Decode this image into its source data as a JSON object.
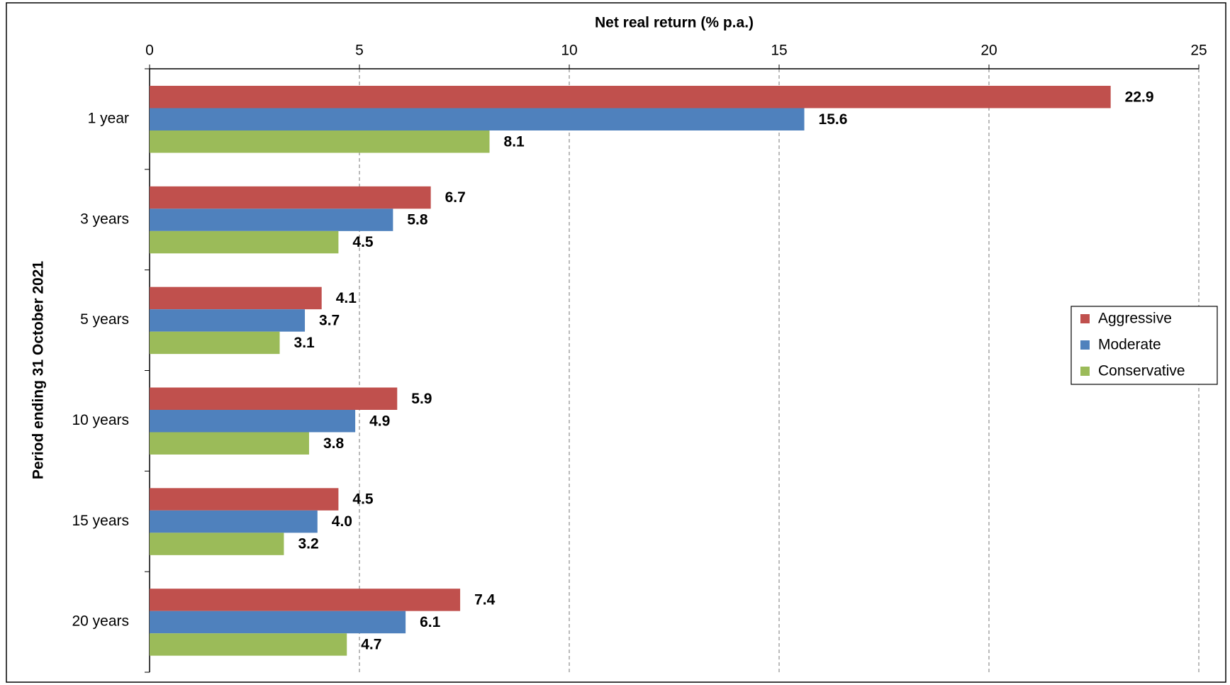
{
  "chart_data": {
    "type": "bar",
    "orientation": "horizontal",
    "x_label": "Net real return (% p.a.)",
    "y_label": "Period ending 31 October 2021",
    "categories": [
      "1 year",
      "3 years",
      "5 years",
      "10 years",
      "15 years",
      "20 years"
    ],
    "series": [
      {
        "name": "Aggressive",
        "color": "#c0504d",
        "values": [
          22.9,
          6.7,
          4.1,
          5.9,
          4.5,
          7.4
        ],
        "value_labels": [
          "22.9",
          "6.7",
          "4.1",
          "5.9",
          "4.5",
          "7.4"
        ]
      },
      {
        "name": "Moderate",
        "color": "#4f81bd",
        "values": [
          15.6,
          5.8,
          3.7,
          4.9,
          4.0,
          6.1
        ],
        "value_labels": [
          "15.6",
          "5.8",
          "3.7",
          "4.9",
          "4.0",
          "6.1"
        ]
      },
      {
        "name": "Conservative",
        "color": "#9bbb59",
        "values": [
          8.1,
          4.5,
          3.1,
          3.8,
          3.2,
          4.7
        ],
        "value_labels": [
          "8.1",
          "4.5",
          "3.1",
          "3.8",
          "3.2",
          "4.7"
        ]
      }
    ],
    "xlim": [
      0,
      25
    ],
    "xticks": [
      0,
      5,
      10,
      15,
      20,
      25
    ],
    "grid": true,
    "legend": "right"
  }
}
